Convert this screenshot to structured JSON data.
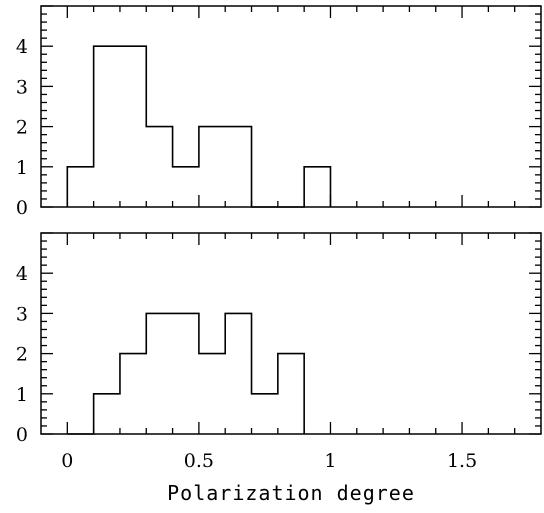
{
  "chart_data": {
    "type": "histogram",
    "xlabel": "Polarization degree",
    "xlim": [
      -0.1,
      1.8
    ],
    "x_ticks": [
      0,
      0.5,
      1,
      1.5
    ],
    "x_tick_labels": [
      "0",
      "0.5",
      "1",
      "1.5"
    ],
    "panels": [
      {
        "ylim": [
          0,
          5
        ],
        "y_ticks": [
          0,
          1,
          2,
          3,
          4
        ],
        "y_tick_labels": [
          "0",
          "1",
          "2",
          "3",
          "4"
        ],
        "bins": [
          0,
          0.1,
          0.2,
          0.3,
          0.4,
          0.5,
          0.6,
          0.7,
          0.8,
          0.9,
          1.0
        ],
        "counts": [
          1,
          4,
          4,
          2,
          1,
          2,
          2,
          0,
          0,
          1
        ]
      },
      {
        "ylim": [
          0,
          5
        ],
        "y_ticks": [
          0,
          1,
          2,
          3,
          4
        ],
        "y_tick_labels": [
          "0",
          "1",
          "2",
          "3",
          "4"
        ],
        "bins": [
          0,
          0.1,
          0.2,
          0.3,
          0.4,
          0.5,
          0.6,
          0.7,
          0.8,
          0.9
        ],
        "counts": [
          0,
          1,
          2,
          3,
          3,
          2,
          3,
          1,
          2
        ]
      }
    ]
  }
}
